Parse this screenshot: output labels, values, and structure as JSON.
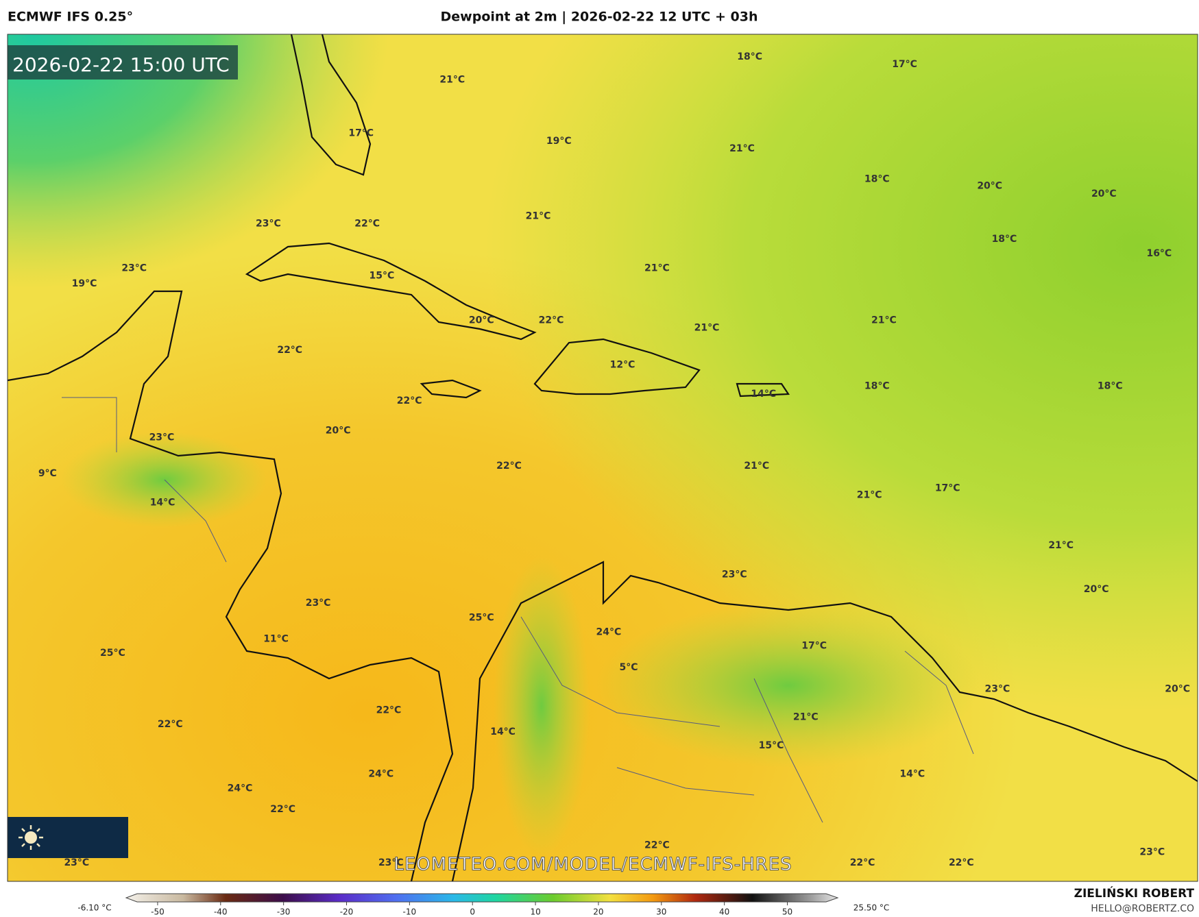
{
  "header": {
    "model": "ECMWF IFS 0.25°",
    "title": "Dewpoint at 2m | 2026-02-22 12 UTC + 03h"
  },
  "map": {
    "timestamp": "2026-02-22 15:00 UTC",
    "watermark": "LEOMETEO.COM/MODEL/ECMWF-IFS-HRES",
    "labels": [
      "18°C",
      "17°C",
      "21°C",
      "17°C",
      "19°C",
      "21°C",
      "18°C",
      "20°C",
      "20°C",
      "23°C",
      "22°C",
      "21°C",
      "18°C",
      "16°C",
      "23°C",
      "21°C",
      "15°C",
      "19°C",
      "20°C",
      "22°C",
      "21°C",
      "21°C",
      "22°C",
      "12°C",
      "18°C",
      "18°C",
      "22°C",
      "14°C",
      "20°C",
      "23°C",
      "22°C",
      "21°C",
      "9°C",
      "17°C",
      "21°C",
      "14°C",
      "21°C",
      "23°C",
      "20°C",
      "23°C",
      "25°C",
      "24°C",
      "11°C",
      "17°C",
      "25°C",
      "5°C",
      "23°C",
      "20°C",
      "22°C",
      "21°C",
      "22°C",
      "14°C",
      "15°C",
      "24°C",
      "14°C",
      "24°C",
      "22°C",
      "22°C",
      "23°C",
      "23°C",
      "22°C",
      "22°C",
      "23°C"
    ]
  },
  "colorbar": {
    "range": [
      -55,
      58
    ],
    "ticks": [
      -50,
      -40,
      -30,
      -20,
      -10,
      0,
      10,
      20,
      30,
      40,
      50
    ],
    "min_label": "-6.10 °C",
    "max_label": "25.50 °C"
  },
  "footer": {
    "author": "ZIELIŃSKI ROBERT",
    "email": "HELLO@ROBERTZ.CO"
  }
}
